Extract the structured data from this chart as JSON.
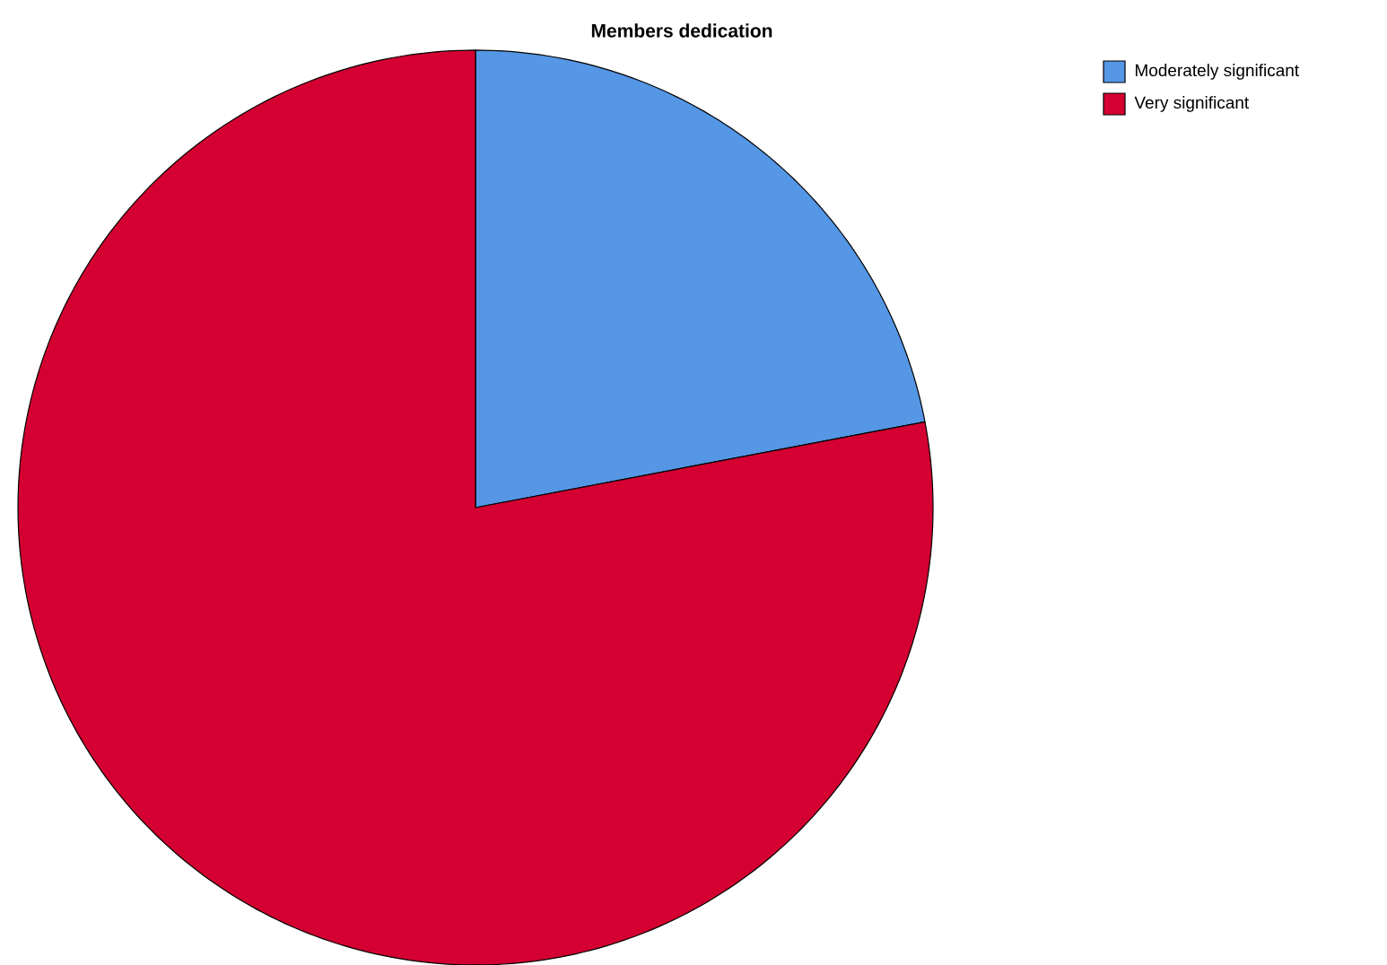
{
  "chart_data": {
    "type": "pie",
    "title": "Members dedication",
    "categories": [
      "Moderately significant",
      "Very significant"
    ],
    "values": [
      22,
      78
    ],
    "colors": [
      "#5596e5",
      "#d30031"
    ],
    "legend": "top right"
  }
}
